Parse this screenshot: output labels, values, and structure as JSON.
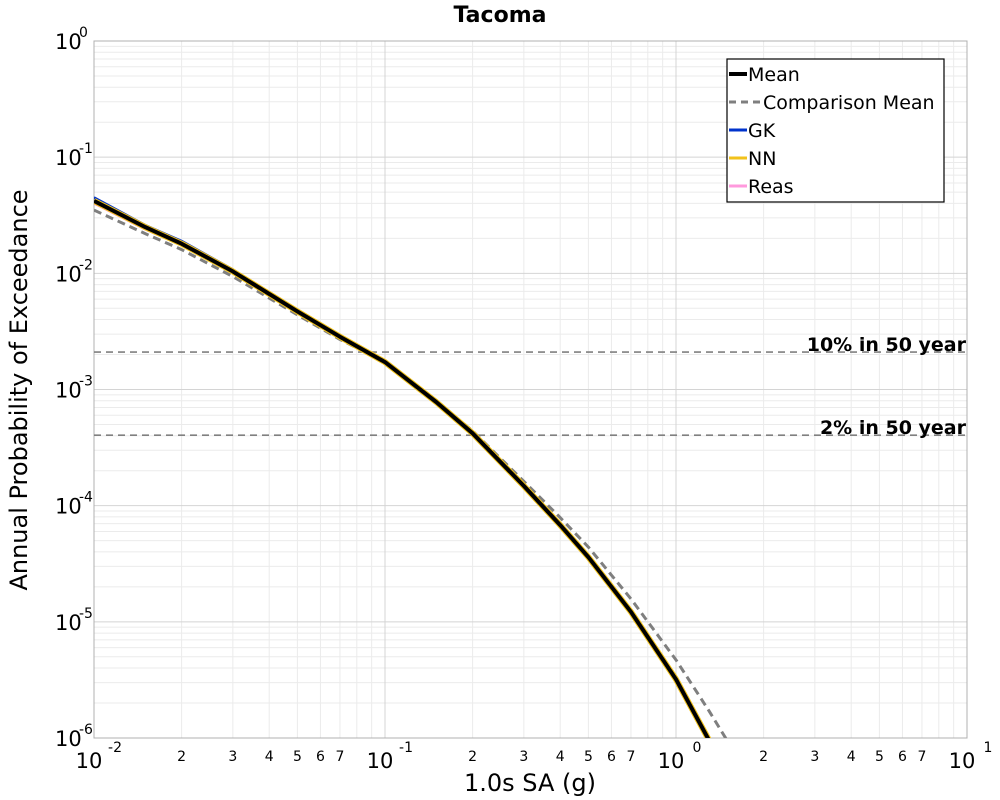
{
  "chart_data": {
    "type": "line",
    "title": "Tacoma",
    "xlabel": "1.0s SA (g)",
    "ylabel": "Annual Probability of Exceedance",
    "xscale": "log",
    "yscale": "log",
    "xlim": [
      0.01,
      10
    ],
    "ylim": [
      1e-06,
      1
    ],
    "grid": true,
    "legend_position": "top-right",
    "x_major_ticks": [
      {
        "value": 0.01,
        "base": "10",
        "exp": "-2"
      },
      {
        "value": 0.1,
        "base": "10",
        "exp": "-1"
      },
      {
        "value": 1,
        "base": "10",
        "exp": "0"
      },
      {
        "value": 10,
        "base": "10",
        "exp": "1"
      }
    ],
    "x_minor_tick_labels": [
      "2",
      "3",
      "4",
      "5",
      "6",
      "7"
    ],
    "y_major_ticks": [
      {
        "value": 1,
        "base": "10",
        "exp": "0"
      },
      {
        "value": 0.1,
        "base": "10",
        "exp": "-1"
      },
      {
        "value": 0.01,
        "base": "10",
        "exp": "-2"
      },
      {
        "value": 0.001,
        "base": "10",
        "exp": "-3"
      },
      {
        "value": 0.0001,
        "base": "10",
        "exp": "-4"
      },
      {
        "value": 1e-05,
        "base": "10",
        "exp": "-5"
      },
      {
        "value": 1e-06,
        "base": "10",
        "exp": "-6"
      }
    ],
    "x": [
      0.01,
      0.015,
      0.02,
      0.03,
      0.05,
      0.07,
      0.1,
      0.15,
      0.2,
      0.3,
      0.4,
      0.5,
      0.7,
      1.0,
      1.3,
      1.5
    ],
    "series": [
      {
        "name": "Mean",
        "color": "#000000",
        "dash": "solid",
        "values": [
          0.042,
          0.025,
          0.018,
          0.0104,
          0.0047,
          0.00285,
          0.00172,
          0.00078,
          0.00042,
          0.000148,
          6.8e-05,
          3.6e-05,
          1.22e-05,
          3.2e-06,
          9.5e-07,
          null
        ]
      },
      {
        "name": "Comparison Mean",
        "color": "#7f7f7f",
        "dash": "dashed",
        "values": [
          0.035,
          0.022,
          0.016,
          0.0094,
          0.0044,
          0.0027,
          0.00172,
          0.00079,
          0.00044,
          0.000162,
          7.9e-05,
          4.4e-05,
          1.58e-05,
          4.7e-06,
          1.7e-06,
          9.5e-07
        ]
      },
      {
        "name": "GK",
        "color": "#0033cc",
        "dash": "solid",
        "values": [
          0.045,
          0.026,
          0.019,
          0.0108,
          0.0048,
          0.00287,
          0.00172,
          0.00078,
          0.00042,
          0.000147,
          6.7e-05,
          3.55e-05,
          1.2e-05,
          3.1e-06,
          9.2e-07,
          null
        ]
      },
      {
        "name": "NN",
        "color": "#f2c21b",
        "dash": "solid",
        "values": [
          0.042,
          0.025,
          0.018,
          0.0104,
          0.0047,
          0.00286,
          0.00174,
          0.0008,
          0.00043,
          0.000151,
          7e-05,
          3.7e-05,
          1.27e-05,
          3.4e-06,
          1.02e-06,
          null
        ]
      },
      {
        "name": "Reas",
        "color": "#ff99dd",
        "dash": "solid",
        "values": [
          0.04,
          0.024,
          0.0175,
          0.0101,
          0.0046,
          0.0028,
          0.0017,
          0.00077,
          0.00042,
          0.000147,
          6.8e-05,
          3.6e-05,
          1.22e-05,
          3.2e-06,
          9.5e-07,
          null
        ]
      }
    ],
    "reference_lines": [
      {
        "label": "10% in 50 year",
        "y": 0.0021
      },
      {
        "label": "2% in 50 year",
        "y": 0.000404
      }
    ]
  }
}
